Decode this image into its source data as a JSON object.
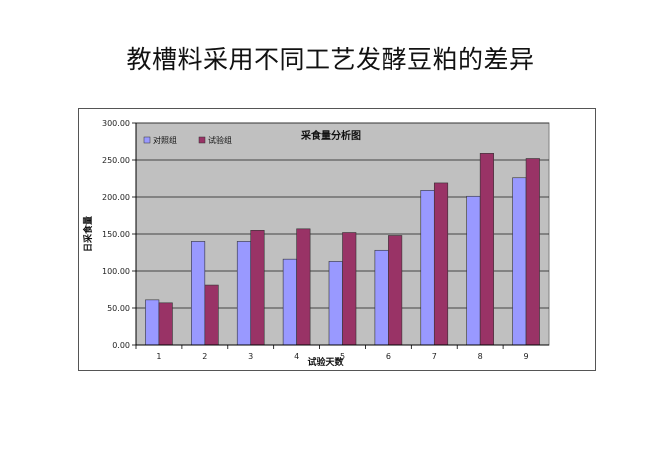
{
  "page": {
    "title": "教槽料采用不同工艺发酵豆粕的差异"
  },
  "chart_data": {
    "type": "bar",
    "title": "采食量分析图",
    "xlabel": "试验天数",
    "ylabel": "日采食量",
    "categories": [
      "1",
      "2",
      "3",
      "4",
      "5",
      "6",
      "7",
      "8",
      "9"
    ],
    "series": [
      {
        "name": "对照组",
        "color": "#9999ff",
        "values": [
          61,
          140,
          140,
          116,
          113,
          128,
          209,
          201,
          226
        ]
      },
      {
        "name": "试验组",
        "color": "#993366",
        "values": [
          57,
          81,
          155,
          157,
          152,
          148,
          219,
          259,
          252
        ]
      }
    ],
    "ylim": [
      0,
      300
    ],
    "yticks": [
      "0.00",
      "50.00",
      "100.00",
      "150.00",
      "200.00",
      "250.00",
      "300.00"
    ],
    "grid": true,
    "legend": "top-left",
    "plot_background": "#c0c0c0"
  }
}
